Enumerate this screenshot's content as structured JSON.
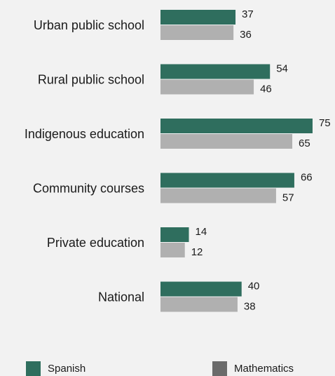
{
  "chart_data": {
    "type": "bar",
    "orientation": "horizontal",
    "categories": [
      "Urban public school",
      "Rural public school",
      "Indigenous education",
      "Community courses",
      "Private education",
      "National"
    ],
    "series": [
      {
        "name": "Spanish",
        "values": [
          37,
          54,
          75,
          66,
          14,
          40
        ],
        "color": "#2f6e5e"
      },
      {
        "name": "Mathematics",
        "values": [
          36,
          46,
          65,
          57,
          12,
          38
        ],
        "color": "#b0b0b0"
      }
    ],
    "legend_colors": [
      "#2f6e5e",
      "#6b6b6b"
    ],
    "xlim": [
      0,
      75
    ],
    "grid": false,
    "legend_position": "bottom"
  }
}
